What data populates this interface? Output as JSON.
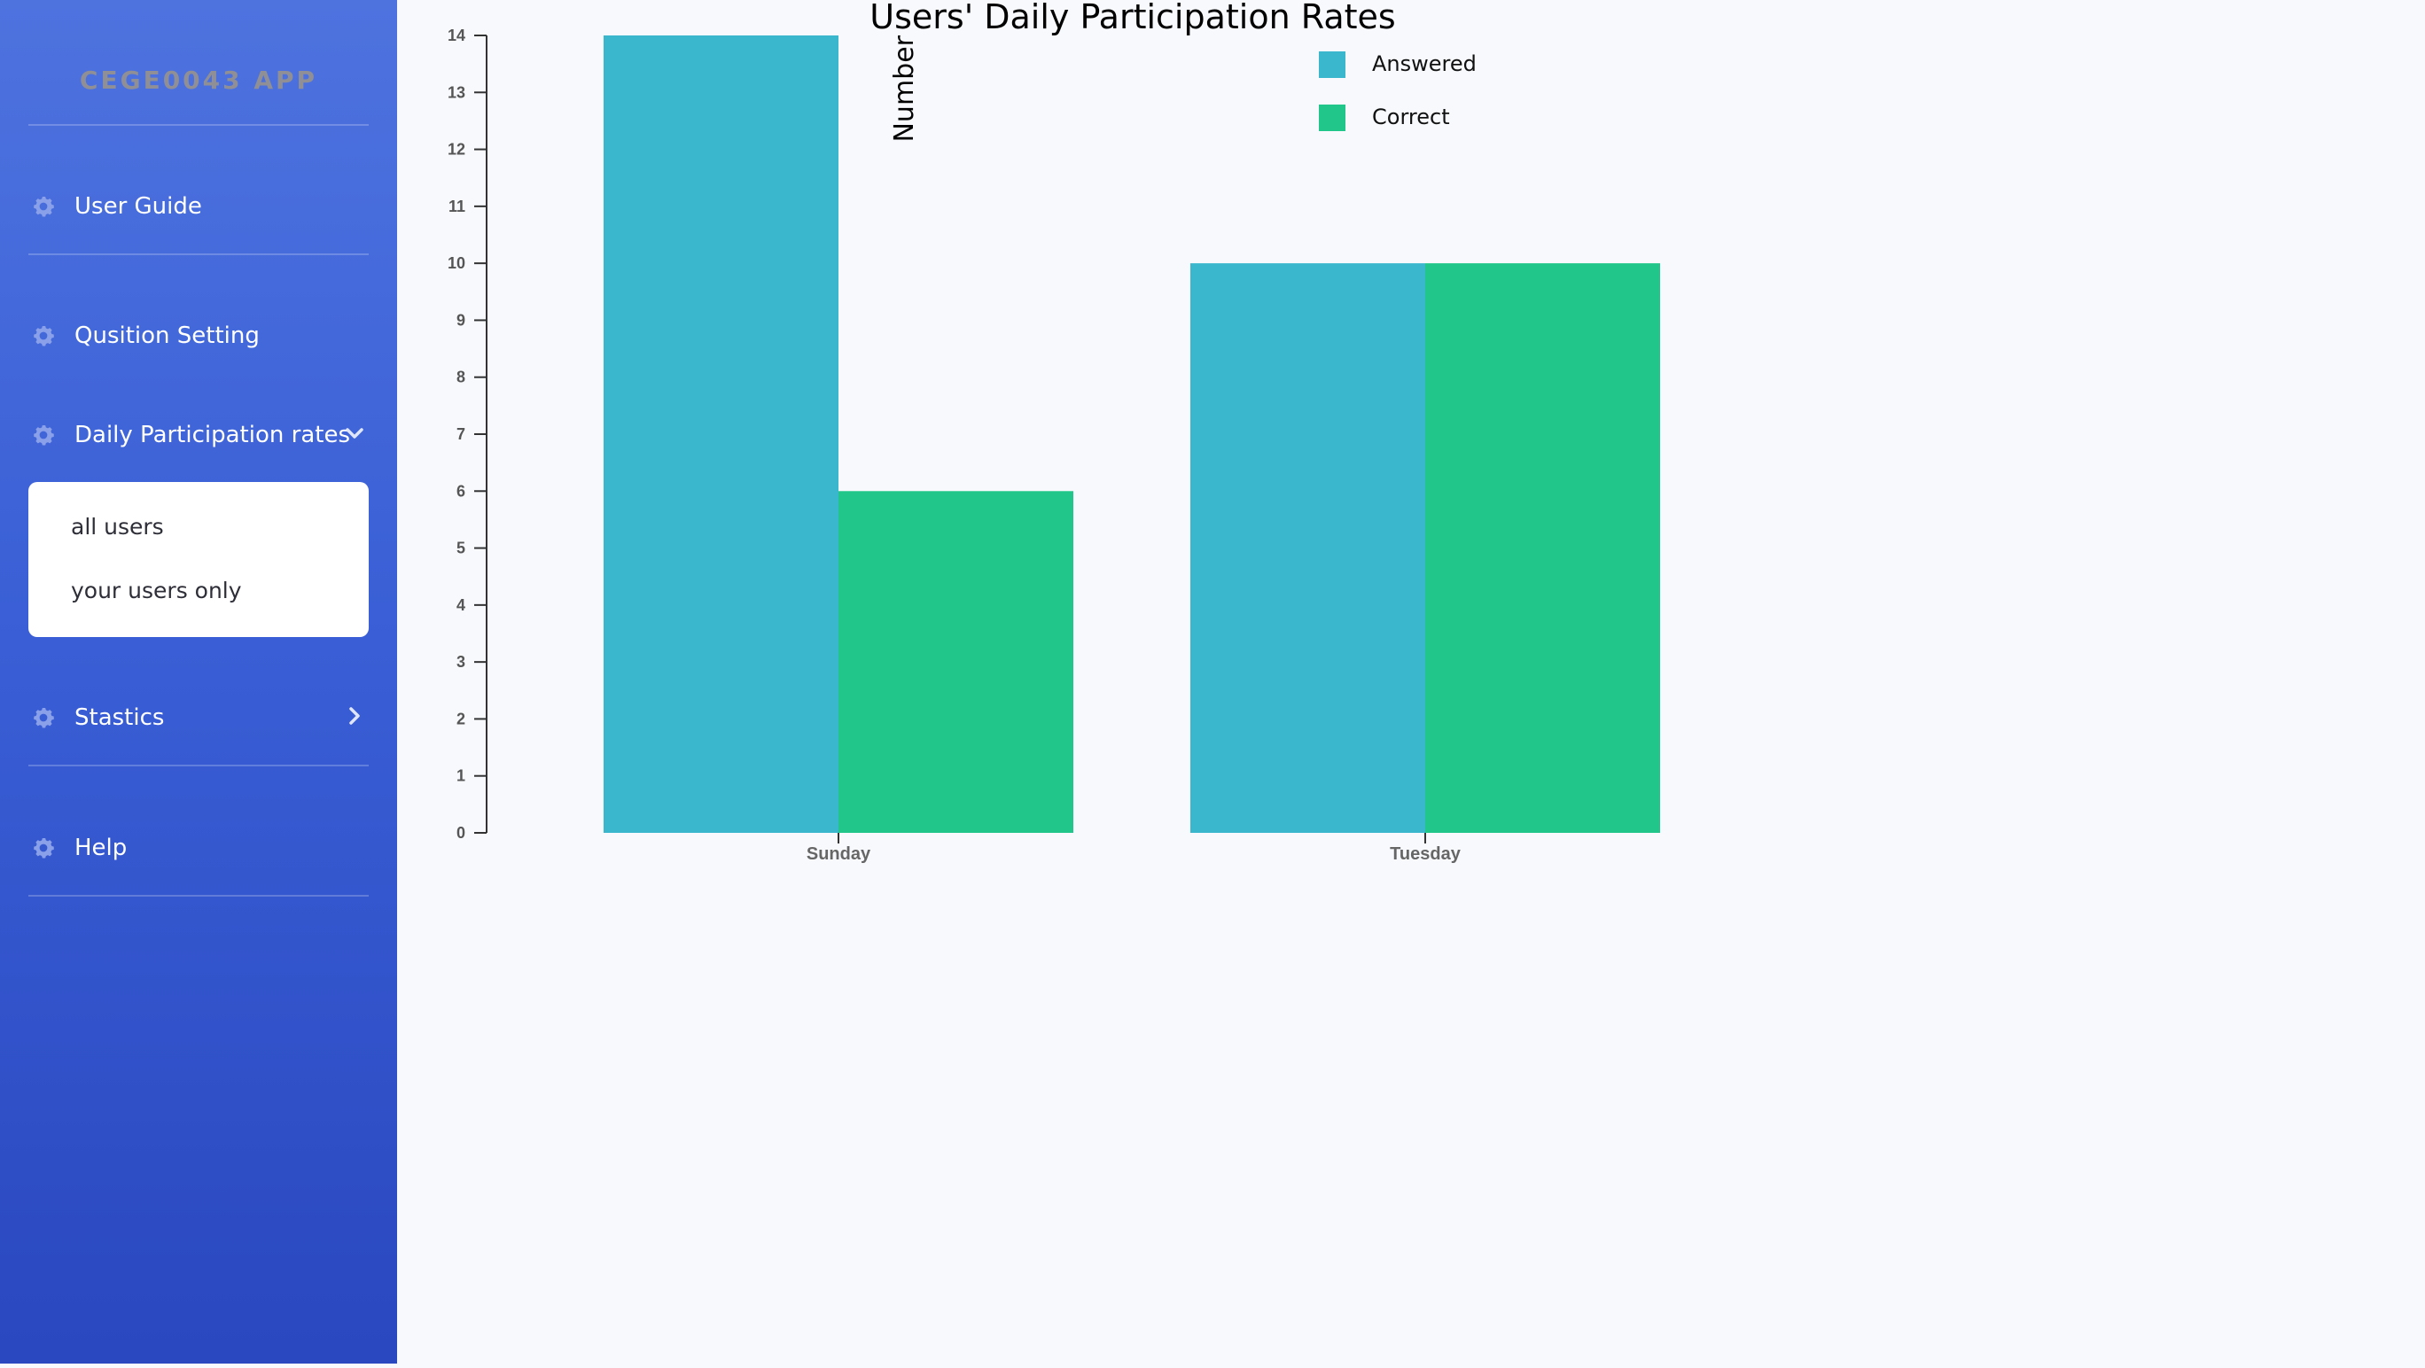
{
  "sidebar": {
    "brand": "CEGE0043 APP",
    "items": [
      {
        "label": "User Guide",
        "icon": "gear-icon"
      },
      {
        "label": "Qusition Setting",
        "icon": "gear-icon"
      },
      {
        "label": "Daily Participation rates",
        "icon": "gear-icon",
        "expanded": true
      },
      {
        "label": "Stastics",
        "icon": "gear-icon",
        "expanded": false
      },
      {
        "label": "Help",
        "icon": "gear-icon"
      }
    ],
    "submenu": [
      "all users",
      "your users only"
    ],
    "colors": {
      "gradient_top": "#4e73df",
      "gradient_bottom": "#2a48c0",
      "brand_text": "#8f8f95"
    }
  },
  "chart_data": {
    "type": "bar",
    "title": "Users' Daily Participation Rates",
    "ylabel": "Number",
    "xlabel": "",
    "categories": [
      "Sunday",
      "Tuesday"
    ],
    "series": [
      {
        "name": "Answered",
        "values": [
          14,
          10
        ],
        "color": "#3ab7cd"
      },
      {
        "name": "Correct",
        "values": [
          6,
          10
        ],
        "color": "#21c78a"
      }
    ],
    "ylim": [
      0,
      14
    ],
    "yticks": [
      "0",
      "1",
      "2",
      "3",
      "4",
      "5",
      "6",
      "7",
      "8",
      "9",
      "10",
      "11",
      "12",
      "13",
      "14"
    ],
    "legend": "top-right",
    "grid": false
  }
}
